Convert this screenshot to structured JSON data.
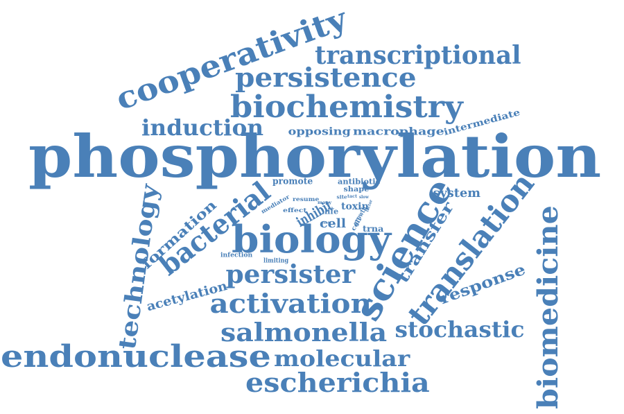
{
  "color": "#4a80b8",
  "words": [
    {
      "id": "phosphorylation",
      "text": "phosphorylation"
    },
    {
      "id": "cooperativity",
      "text": "cooperativity"
    },
    {
      "id": "transcriptional",
      "text": "transcriptional"
    },
    {
      "id": "persistence",
      "text": "persistence"
    },
    {
      "id": "biochemistry",
      "text": "biochemistry"
    },
    {
      "id": "induction",
      "text": "induction"
    },
    {
      "id": "opposing",
      "text": "opposing"
    },
    {
      "id": "macrophage",
      "text": "macrophage"
    },
    {
      "id": "intermediate",
      "text": "intermediate"
    },
    {
      "id": "technology",
      "text": "technology"
    },
    {
      "id": "formation",
      "text": "formation"
    },
    {
      "id": "bacterial",
      "text": "bacterial"
    },
    {
      "id": "biology",
      "text": "biology"
    },
    {
      "id": "science",
      "text": "science"
    },
    {
      "id": "translation",
      "text": "translation"
    },
    {
      "id": "transfer",
      "text": "transfer"
    },
    {
      "id": "system",
      "text": "system"
    },
    {
      "id": "biomedicine",
      "text": "biomedicine"
    },
    {
      "id": "response",
      "text": "response"
    },
    {
      "id": "persister",
      "text": "persister"
    },
    {
      "id": "acetylation",
      "text": "acetylation"
    },
    {
      "id": "activation",
      "text": "activation"
    },
    {
      "id": "salmonella",
      "text": "salmonella"
    },
    {
      "id": "stochastic",
      "text": "stochastic"
    },
    {
      "id": "endonuclease",
      "text": "endonuclease"
    },
    {
      "id": "molecular",
      "text": "molecular"
    },
    {
      "id": "escherichia",
      "text": "escherichia"
    },
    {
      "id": "promote",
      "text": "promote"
    },
    {
      "id": "antibiotic",
      "text": "antibiotic"
    },
    {
      "id": "shape",
      "text": "shape"
    },
    {
      "id": "mediator",
      "text": "mediator"
    },
    {
      "id": "resume",
      "text": "resume"
    },
    {
      "id": "effect",
      "text": "effect"
    },
    {
      "id": "many",
      "text": "many"
    },
    {
      "id": "site",
      "text": "site"
    },
    {
      "id": "tact",
      "text": "tact"
    },
    {
      "id": "slow",
      "text": "slow"
    },
    {
      "id": "toxin",
      "text": "toxin"
    },
    {
      "id": "inhibit",
      "text": "inhibit"
    },
    {
      "id": "life",
      "text": "life"
    },
    {
      "id": "factor",
      "text": "factor"
    },
    {
      "id": "growth",
      "text": "growth"
    },
    {
      "id": "cell",
      "text": "cell"
    },
    {
      "id": "coli",
      "text": "coli"
    },
    {
      "id": "fast",
      "text": "fast"
    },
    {
      "id": "trna",
      "text": "trna"
    },
    {
      "id": "infection",
      "text": "infection"
    },
    {
      "id": "limiting",
      "text": "limiting"
    }
  ]
}
